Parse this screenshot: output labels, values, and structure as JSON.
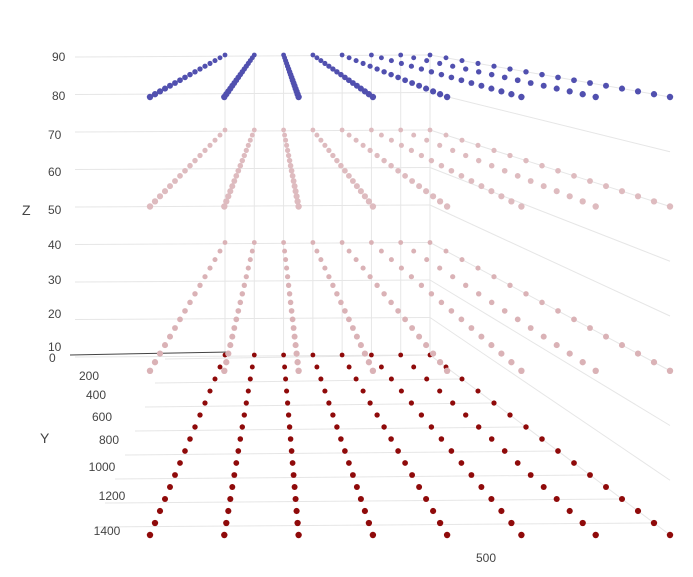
{
  "chart_data": {
    "type": "scatter3d",
    "title": "",
    "axes": {
      "x": {
        "label": "",
        "visible_ticks": [
          "500"
        ]
      },
      "y": {
        "label": "Y",
        "ticks": [
          "0",
          "200",
          "400",
          "600",
          "800",
          "1000",
          "1200",
          "1400"
        ]
      },
      "z": {
        "label": "Z",
        "ticks": [
          "10",
          "20",
          "30",
          "40",
          "50",
          "60",
          "70",
          "80",
          "90"
        ]
      }
    },
    "grid": true,
    "legend": "none",
    "colorscale": {
      "low": "#8b0000",
      "mid": "#f7f4f9",
      "high": "#00008b"
    },
    "layers": [
      {
        "z": 10,
        "x_range": [
          0,
          700
        ],
        "y_range": [
          0,
          1500
        ],
        "grid_step": 100
      },
      {
        "z": 40,
        "x_range": [
          0,
          700
        ],
        "y_range": [
          0,
          1500
        ],
        "grid_step": 100
      },
      {
        "z": 70,
        "x_range": [
          0,
          700
        ],
        "y_range": [
          0,
          1500
        ],
        "grid_step": 100
      },
      {
        "z": 90,
        "x_range": [
          0,
          700
        ],
        "y_range": [
          0,
          1500
        ],
        "grid_step": 100
      }
    ]
  },
  "colors": {
    "background": "#ffffff",
    "gridline": "#e6e6e6",
    "axisline": "#444444",
    "ticktext": "#444444"
  }
}
